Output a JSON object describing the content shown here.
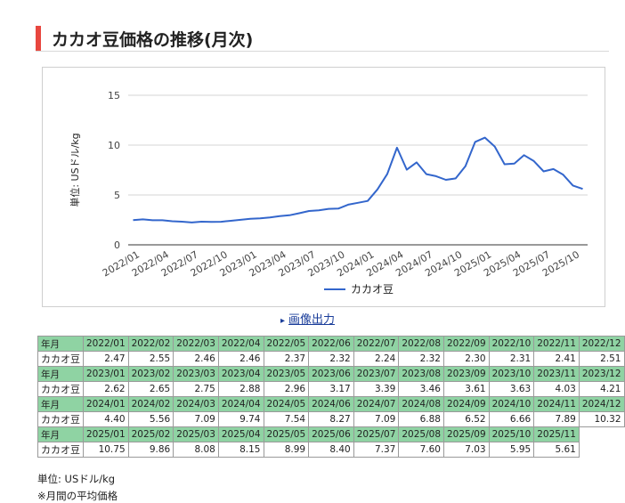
{
  "title": "カカオ豆価格の推移(月次)",
  "export_link": "画像出力",
  "chart_data": {
    "type": "line",
    "ylabel": "単位: USドル/kg",
    "ylim": [
      0,
      15
    ],
    "yticks": [
      "0",
      "5",
      "10",
      "15"
    ],
    "x_tick_labels": [
      "2022/01",
      "2022/04",
      "2022/07",
      "2022/10",
      "2023/01",
      "2023/04",
      "2023/07",
      "2023/10",
      "2024/01",
      "2024/04",
      "2024/07",
      "2024/10",
      "2025/01",
      "2025/04",
      "2025/07",
      "2025/10"
    ],
    "grid": true,
    "legend_position": "bottom",
    "series": [
      {
        "name": "カカオ豆",
        "color": "#3366cc",
        "x": [
          "2022/01",
          "2022/02",
          "2022/03",
          "2022/04",
          "2022/05",
          "2022/06",
          "2022/07",
          "2022/08",
          "2022/09",
          "2022/10",
          "2022/11",
          "2022/12",
          "2023/01",
          "2023/02",
          "2023/03",
          "2023/04",
          "2023/05",
          "2023/06",
          "2023/07",
          "2023/08",
          "2023/09",
          "2023/10",
          "2023/11",
          "2023/12",
          "2024/01",
          "2024/02",
          "2024/03",
          "2024/04",
          "2024/05",
          "2024/06",
          "2024/07",
          "2024/08",
          "2024/09",
          "2024/10",
          "2024/11",
          "2024/12",
          "2025/01",
          "2025/02",
          "2025/03",
          "2025/04",
          "2025/05",
          "2025/06",
          "2025/07",
          "2025/08",
          "2025/09",
          "2025/10",
          "2025/11"
        ],
        "values": [
          2.47,
          2.55,
          2.46,
          2.46,
          2.37,
          2.32,
          2.24,
          2.32,
          2.3,
          2.31,
          2.41,
          2.51,
          2.62,
          2.65,
          2.75,
          2.88,
          2.96,
          3.17,
          3.39,
          3.46,
          3.61,
          3.63,
          4.03,
          4.21,
          4.4,
          5.56,
          7.09,
          9.74,
          7.54,
          8.27,
          7.09,
          6.88,
          6.52,
          6.66,
          7.89,
          10.32,
          10.75,
          9.86,
          8.08,
          8.15,
          8.99,
          8.4,
          7.37,
          7.6,
          7.03,
          5.95,
          5.61
        ]
      }
    ]
  },
  "table": {
    "header_label": "年月",
    "row_label": "カカオ豆",
    "rows": [
      {
        "months": [
          "2022/01",
          "2022/02",
          "2022/03",
          "2022/04",
          "2022/05",
          "2022/06",
          "2022/07",
          "2022/08",
          "2022/09",
          "2022/10",
          "2022/11",
          "2022/12"
        ],
        "values": [
          "2.47",
          "2.55",
          "2.46",
          "2.46",
          "2.37",
          "2.32",
          "2.24",
          "2.32",
          "2.30",
          "2.31",
          "2.41",
          "2.51"
        ]
      },
      {
        "months": [
          "2023/01",
          "2023/02",
          "2023/03",
          "2023/04",
          "2023/05",
          "2023/06",
          "2023/07",
          "2023/08",
          "2023/09",
          "2023/10",
          "2023/11",
          "2023/12"
        ],
        "values": [
          "2.62",
          "2.65",
          "2.75",
          "2.88",
          "2.96",
          "3.17",
          "3.39",
          "3.46",
          "3.61",
          "3.63",
          "4.03",
          "4.21"
        ]
      },
      {
        "months": [
          "2024/01",
          "2024/02",
          "2024/03",
          "2024/04",
          "2024/05",
          "2024/06",
          "2024/07",
          "2024/08",
          "2024/09",
          "2024/10",
          "2024/11",
          "2024/12"
        ],
        "values": [
          "4.40",
          "5.56",
          "7.09",
          "9.74",
          "7.54",
          "8.27",
          "7.09",
          "6.88",
          "6.52",
          "6.66",
          "7.89",
          "10.32"
        ]
      },
      {
        "months": [
          "2025/01",
          "2025/02",
          "2025/03",
          "2025/04",
          "2025/05",
          "2025/06",
          "2025/07",
          "2025/08",
          "2025/09",
          "2025/10",
          "2025/11"
        ],
        "values": [
          "10.75",
          "9.86",
          "8.08",
          "8.15",
          "8.99",
          "8.40",
          "7.37",
          "7.60",
          "7.03",
          "5.95",
          "5.61"
        ]
      }
    ]
  },
  "notes": {
    "unit": "単位: USドル/kg",
    "average": "※月間の平均価格"
  }
}
